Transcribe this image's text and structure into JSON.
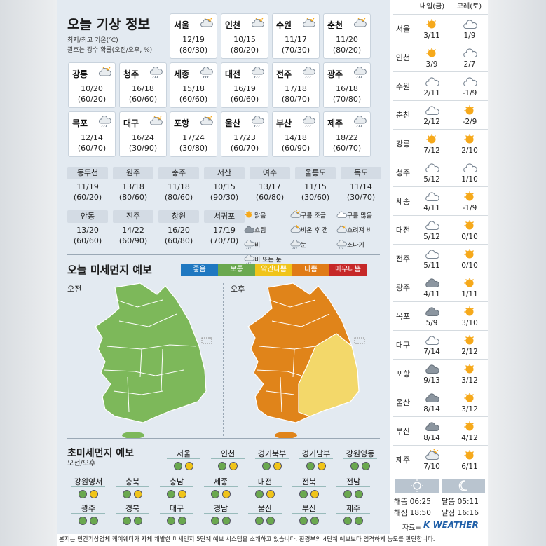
{
  "title": "오늘 기상 정보",
  "subtitle1": "최저/최고 기온(℃)",
  "subtitle2": "괄호는 강수 확률(오전/오후, %)",
  "cards": [
    {
      "name": "서울",
      "icon": "cloudy-sun-icon",
      "temp": "12/19",
      "rain": "(80/30)"
    },
    {
      "name": "인천",
      "icon": "cloudy-sun-icon",
      "temp": "10/15",
      "rain": "(80/20)"
    },
    {
      "name": "수원",
      "icon": "cloudy-sun-icon",
      "temp": "11/17",
      "rain": "(70/30)"
    },
    {
      "name": "춘천",
      "icon": "cloudy-sun-icon",
      "temp": "11/20",
      "rain": "(80/20)"
    },
    {
      "name": "강릉",
      "icon": "cloudy-sun-icon",
      "temp": "10/20",
      "rain": "(60/20)"
    },
    {
      "name": "청주",
      "icon": "rain-icon",
      "temp": "16/18",
      "rain": "(60/60)"
    },
    {
      "name": "세종",
      "icon": "rain-icon",
      "temp": "15/18",
      "rain": "(60/60)"
    },
    {
      "name": "대전",
      "icon": "rain-icon",
      "temp": "16/19",
      "rain": "(60/60)"
    },
    {
      "name": "전주",
      "icon": "rain-icon",
      "temp": "17/18",
      "rain": "(80/70)"
    },
    {
      "name": "광주",
      "icon": "rain-icon",
      "temp": "16/18",
      "rain": "(70/80)"
    },
    {
      "name": "목포",
      "icon": "rain-icon",
      "temp": "12/14",
      "rain": "(60/70)"
    },
    {
      "name": "대구",
      "icon": "cloudy-sun-icon",
      "temp": "16/24",
      "rain": "(30/90)"
    },
    {
      "name": "포항",
      "icon": "cloudy-sun-icon",
      "temp": "17/24",
      "rain": "(30/80)"
    },
    {
      "name": "울산",
      "icon": "rain-icon",
      "temp": "17/23",
      "rain": "(60/70)"
    },
    {
      "name": "부산",
      "icon": "rain-icon",
      "temp": "14/18",
      "rain": "(60/90)"
    },
    {
      "name": "제주",
      "icon": "rain-icon",
      "temp": "18/22",
      "rain": "(60/70)"
    }
  ],
  "small_cities": [
    {
      "name": "동두천",
      "temp": "11/19",
      "rain": "(60/20)"
    },
    {
      "name": "원주",
      "temp": "13/18",
      "rain": "(80/60)"
    },
    {
      "name": "충주",
      "temp": "11/18",
      "rain": "(80/60)"
    },
    {
      "name": "서산",
      "temp": "10/15",
      "rain": "(90/30)"
    },
    {
      "name": "여수",
      "temp": "13/17",
      "rain": "(60/80)"
    },
    {
      "name": "울릉도",
      "temp": "11/15",
      "rain": "(30/60)"
    },
    {
      "name": "독도",
      "temp": "11/14",
      "rain": "(30/70)"
    },
    {
      "name": "안동",
      "temp": "13/20",
      "rain": "(60/60)"
    },
    {
      "name": "진주",
      "temp": "14/22",
      "rain": "(60/90)"
    },
    {
      "name": "창원",
      "temp": "16/20",
      "rain": "(60/80)"
    },
    {
      "name": "서귀포",
      "temp": "17/19",
      "rain": "(70/70)"
    }
  ],
  "legend": [
    "맑음",
    "구름 조금",
    "구름 많음",
    "흐림",
    "비온 후 갬",
    "흐려져 비",
    "비",
    "눈",
    "소나기",
    "비 또는 눈"
  ],
  "dust_title": "오늘 미세먼지 예보",
  "dust_levels": [
    {
      "label": "좋음",
      "color": "#1f78c1"
    },
    {
      "label": "보통",
      "color": "#6aa84f"
    },
    {
      "label": "약간나쁨",
      "color": "#f0c419"
    },
    {
      "label": "나쁨",
      "color": "#e07b16"
    },
    {
      "label": "매우나쁨",
      "color": "#c62828"
    }
  ],
  "am_label": "오전",
  "pm_label": "오후",
  "ultrafine_title": "초미세먼지 예보",
  "ultrafine_sub": "오전/오후",
  "regions": [
    {
      "name": "서울",
      "am": "#6aa84f",
      "pm": "#f0c419"
    },
    {
      "name": "인천",
      "am": "#6aa84f",
      "pm": "#f0c419"
    },
    {
      "name": "경기북부",
      "am": "#6aa84f",
      "pm": "#f0c419"
    },
    {
      "name": "경기남부",
      "am": "#6aa84f",
      "pm": "#f0c419"
    },
    {
      "name": "강원영동",
      "am": "#6aa84f",
      "pm": "#6aa84f"
    },
    {
      "name": "강원영서",
      "am": "#6aa84f",
      "pm": "#f0c419"
    },
    {
      "name": "충북",
      "am": "#6aa84f",
      "pm": "#f0c419"
    },
    {
      "name": "충남",
      "am": "#6aa84f",
      "pm": "#f0c419"
    },
    {
      "name": "세종",
      "am": "#6aa84f",
      "pm": "#f0c419"
    },
    {
      "name": "대전",
      "am": "#6aa84f",
      "pm": "#f0c419"
    },
    {
      "name": "전북",
      "am": "#6aa84f",
      "pm": "#f0c419"
    },
    {
      "name": "전남",
      "am": "#6aa84f",
      "pm": "#6aa84f"
    },
    {
      "name": "광주",
      "am": "#6aa84f",
      "pm": "#6aa84f"
    },
    {
      "name": "경북",
      "am": "#6aa84f",
      "pm": "#6aa84f"
    },
    {
      "name": "대구",
      "am": "#6aa84f",
      "pm": "#6aa84f"
    },
    {
      "name": "경남",
      "am": "#6aa84f",
      "pm": "#6aa84f"
    },
    {
      "name": "울산",
      "am": "#6aa84f",
      "pm": "#6aa84f"
    },
    {
      "name": "부산",
      "am": "#6aa84f",
      "pm": "#6aa84f"
    },
    {
      "name": "제주",
      "am": "#6aa84f",
      "pm": "#6aa84f"
    }
  ],
  "forecast_headers": [
    "내일(금)",
    "모레(토)"
  ],
  "forecast": [
    {
      "name": "서울",
      "d1": {
        "icon": "sun-icon",
        "temp": "3/11"
      },
      "d2": {
        "icon": "cloud-icon",
        "temp": "1/9"
      }
    },
    {
      "name": "인천",
      "d1": {
        "icon": "sun-icon",
        "temp": "3/9"
      },
      "d2": {
        "icon": "cloud-icon",
        "temp": "2/7"
      }
    },
    {
      "name": "수원",
      "d1": {
        "icon": "cloud-icon",
        "temp": "2/11"
      },
      "d2": {
        "icon": "cloud-icon",
        "temp": "-1/9"
      }
    },
    {
      "name": "춘천",
      "d1": {
        "icon": "cloud-icon",
        "temp": "2/12"
      },
      "d2": {
        "icon": "sun-icon",
        "temp": "-2/9"
      }
    },
    {
      "name": "강릉",
      "d1": {
        "icon": "sun-icon",
        "temp": "7/12"
      },
      "d2": {
        "icon": "sun-icon",
        "temp": "2/10"
      }
    },
    {
      "name": "청주",
      "d1": {
        "icon": "cloud-icon",
        "temp": "5/12"
      },
      "d2": {
        "icon": "cloud-icon",
        "temp": "1/10"
      }
    },
    {
      "name": "세종",
      "d1": {
        "icon": "cloud-icon",
        "temp": "4/11"
      },
      "d2": {
        "icon": "sun-icon",
        "temp": "-1/9"
      }
    },
    {
      "name": "대전",
      "d1": {
        "icon": "cloud-icon",
        "temp": "5/12"
      },
      "d2": {
        "icon": "sun-icon",
        "temp": "0/10"
      }
    },
    {
      "name": "전주",
      "d1": {
        "icon": "cloud-icon",
        "temp": "5/11"
      },
      "d2": {
        "icon": "sun-icon",
        "temp": "0/10"
      }
    },
    {
      "name": "광주",
      "d1": {
        "icon": "dark-cloud-icon",
        "temp": "4/11"
      },
      "d2": {
        "icon": "sun-icon",
        "temp": "1/11"
      }
    },
    {
      "name": "목포",
      "d1": {
        "icon": "dark-cloud-icon",
        "temp": "5/9"
      },
      "d2": {
        "icon": "sun-icon",
        "temp": "3/10"
      }
    },
    {
      "name": "대구",
      "d1": {
        "icon": "cloud-icon",
        "temp": "7/14"
      },
      "d2": {
        "icon": "sun-icon",
        "temp": "2/12"
      }
    },
    {
      "name": "포항",
      "d1": {
        "icon": "dark-cloud-icon",
        "temp": "9/13"
      },
      "d2": {
        "icon": "sun-icon",
        "temp": "3/12"
      }
    },
    {
      "name": "울산",
      "d1": {
        "icon": "dark-cloud-icon",
        "temp": "8/14"
      },
      "d2": {
        "icon": "sun-icon",
        "temp": "3/12"
      }
    },
    {
      "name": "부산",
      "d1": {
        "icon": "dark-cloud-icon",
        "temp": "8/14"
      },
      "d2": {
        "icon": "sun-icon",
        "temp": "4/12"
      }
    },
    {
      "name": "제주",
      "d1": {
        "icon": "cloudy-sun-icon",
        "temp": "7/10"
      },
      "d2": {
        "icon": "sun-icon",
        "temp": "6/11"
      }
    }
  ],
  "sunrise": "해뜸 06:25",
  "sunset": "해짐 18:50",
  "moonrise": "달뜸 05:11",
  "moonset": "달짐 16:16",
  "source": "자료=",
  "brand": "K WEATHER",
  "footer": "본지는 민간기상업체 케이웨더가 자체 개발한 미세먼지 5단계 예보 시스템을 소개하고 있습니다. 환경부의 4단계 예보보다 엄격하게 농도를 판단합니다."
}
